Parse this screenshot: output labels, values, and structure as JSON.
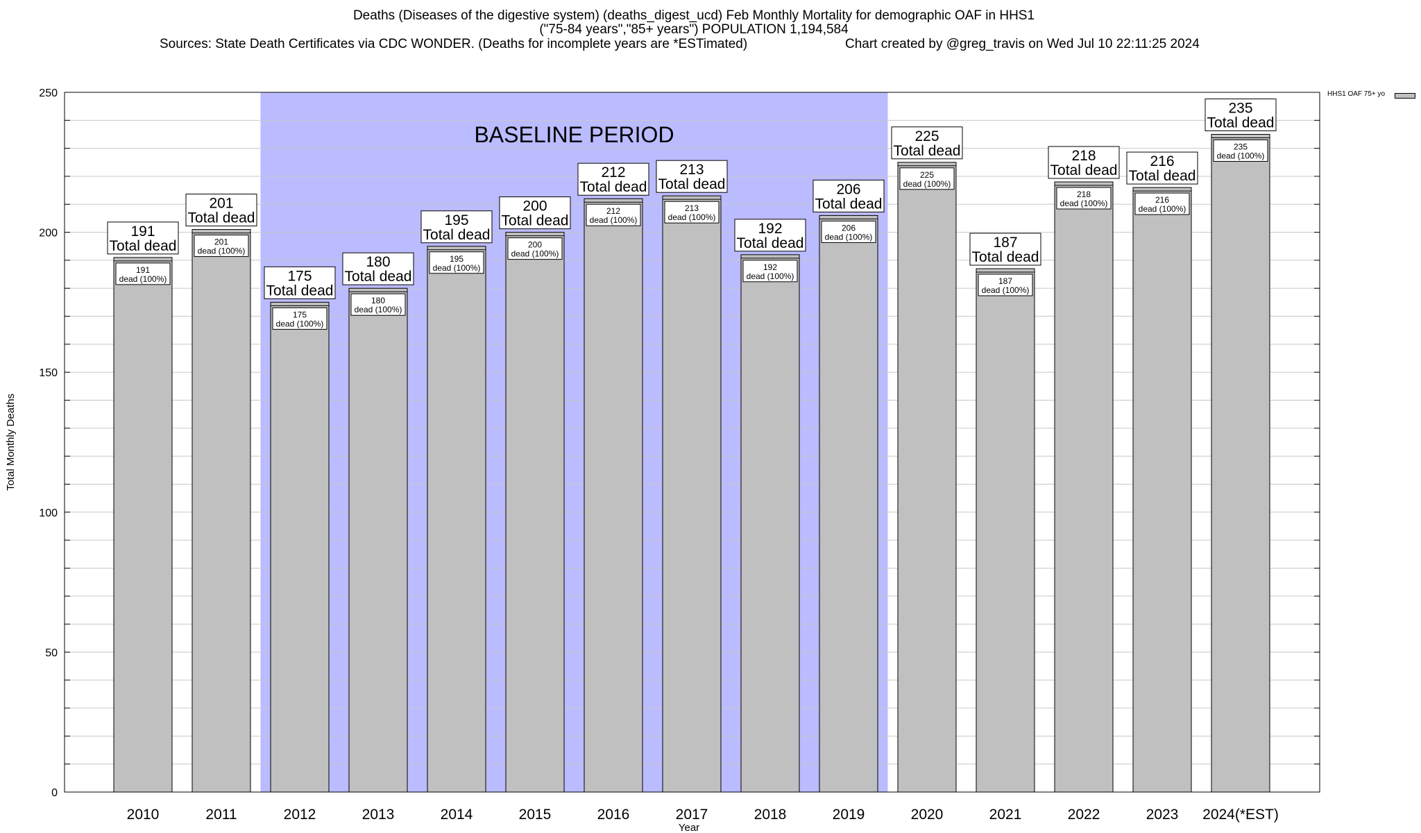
{
  "header": {
    "title_line1": "Deaths (Diseases of the digestive system) (deaths_digest_ucd) Feb Monthly Mortality for demographic OAF in HHS1",
    "title_line2": "(\"75-84 years\",\"85+ years\") POPULATION 1,194,584",
    "sources": "Sources: State Death Certificates via CDC WONDER. (Deaths for incomplete years are *ESTimated)",
    "credit": "Chart created by @greg_travis on Wed Jul 10 22:11:25 2024"
  },
  "legend": {
    "label": "HHS1 OAF 75+ yo"
  },
  "colors": {
    "bar": "#c0c0c0",
    "baseline": "#bbbbff",
    "grid": "#c8c8c8"
  },
  "chart_data": {
    "type": "bar",
    "categories": [
      "2010",
      "2011",
      "2012",
      "2013",
      "2014",
      "2015",
      "2016",
      "2017",
      "2018",
      "2019",
      "2020",
      "2021",
      "2022",
      "2023",
      "2024(*EST)"
    ],
    "series": [
      {
        "name": "HHS1 OAF 75+ yo",
        "values": [
          191,
          201,
          175,
          180,
          195,
          200,
          212,
          213,
          192,
          206,
          225,
          187,
          218,
          216,
          235
        ]
      }
    ],
    "top_label_suffix": "Total dead",
    "inner_label_suffix": "dead (100%)",
    "ylabel": "Total Monthly Deaths",
    "xlabel": "Year",
    "ylim": [
      0,
      250
    ],
    "yticks": [
      0,
      50,
      100,
      150,
      200,
      250
    ],
    "grid": true,
    "legend_position": "top-right",
    "baseline_period": {
      "label": "BASELINE PERIOD",
      "start": "2012",
      "end": "2019"
    }
  }
}
